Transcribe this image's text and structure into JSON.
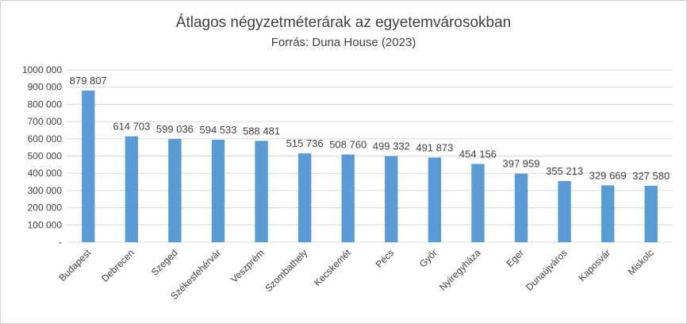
{
  "chart_data": {
    "type": "bar",
    "title": "Átlagos négyzetméterárak  az egyetemvárosokban",
    "subtitle": "Forrás: Duna House (2023)",
    "xlabel": "",
    "ylabel": "",
    "ylim": [
      0,
      1000000
    ],
    "yticks": [
      {
        "value": 0,
        "label": "-"
      },
      {
        "value": 100000,
        "label": "100 000"
      },
      {
        "value": 200000,
        "label": "200 000"
      },
      {
        "value": 300000,
        "label": "300 000"
      },
      {
        "value": 400000,
        "label": "400 000"
      },
      {
        "value": 500000,
        "label": "500 000"
      },
      {
        "value": 600000,
        "label": "600 000"
      },
      {
        "value": 700000,
        "label": "700 000"
      },
      {
        "value": 800000,
        "label": "800 000"
      },
      {
        "value": 900000,
        "label": "900 000"
      },
      {
        "value": 1000000,
        "label": "1000 000"
      }
    ],
    "categories": [
      "Budapest",
      "Debrecen",
      "Szeged",
      "Székesfehérvár",
      "Veszprém",
      "Szombathely",
      "Kecskemét",
      "Pécs",
      "Győr",
      "Nyíregyháza",
      "Eger",
      "Dunaújváros",
      "Kaposvár",
      "Miskolc"
    ],
    "values": [
      879807,
      614703,
      599036,
      594533,
      588481,
      515736,
      508760,
      499332,
      491873,
      454156,
      397959,
      355213,
      329669,
      327580
    ],
    "data_labels": [
      "879 807",
      "614 703",
      "599 036",
      "594 533",
      "588 481",
      "515 736",
      "508 760",
      "499 332",
      "491 873",
      "454 156",
      "397 959",
      "355 213",
      "329 669",
      "327 580"
    ],
    "grid": true,
    "legend": "none",
    "colors": {
      "bar": "#5b9bd5",
      "grid": "#d9d9d9",
      "text": "#404040"
    }
  }
}
